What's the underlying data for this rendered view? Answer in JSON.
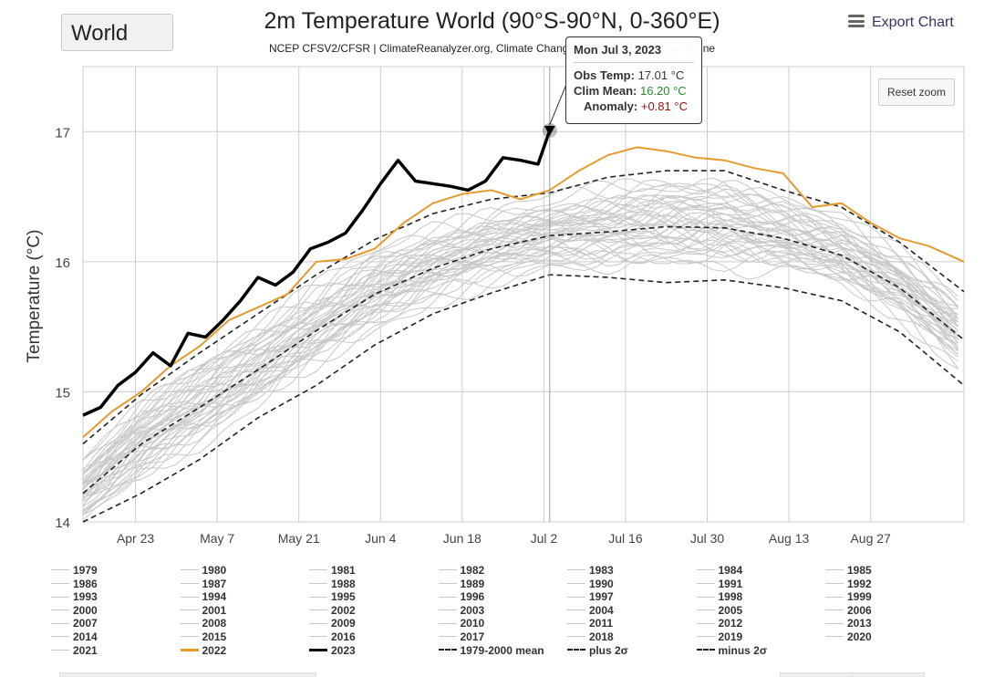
{
  "region_select": {
    "value": "World"
  },
  "title": "2m Temperature World (90°S-90°N, 0-360°E)",
  "subtitle": "NCEP CFSV2/CFSR | ClimateReanalyzer.org, Climate Change Institute, University of Maine",
  "export_label": "Export Chart",
  "reset_zoom_label": "Reset zoom",
  "tooltip": {
    "date": "Mon Jul 3, 2023",
    "rows": [
      {
        "label": "Obs Temp:",
        "value": "17.01 °C",
        "color": "#333333"
      },
      {
        "label": "Clim Mean:",
        "value": "16.20 °C",
        "color": "#2a8a2a"
      },
      {
        "label": "Anomaly:",
        "value": "+0.81 °C",
        "color": "#a01010"
      }
    ]
  },
  "colors": {
    "year_2022": "#e69a2e",
    "year_2023": "#000000",
    "other_years": "#c8c8c8",
    "grid": "#cccccc"
  },
  "chart_data": {
    "type": "line",
    "title": "2m Temperature World (90°S-90°N, 0-360°E)",
    "ylabel": "Temperature (°C)",
    "ylim": [
      14,
      17.5
    ],
    "yticks": [
      14,
      15,
      16,
      17
    ],
    "xlim": [
      "Apr 14",
      "Sep 12"
    ],
    "xticks": [
      "Apr 23",
      "May 7",
      "May 21",
      "Jun 4",
      "Jun 18",
      "Jul 2",
      "Jul 16",
      "Jul 30",
      "Aug 13",
      "Aug 27"
    ],
    "highlight_date": "Jul 3",
    "series": [
      {
        "name": "1979-2000 mean",
        "style": "dash",
        "x": [
          "Apr 14",
          "Apr 24",
          "May 4",
          "May 14",
          "May 24",
          "Jun 3",
          "Jun 13",
          "Jun 23",
          "Jul 3",
          "Jul 13",
          "Jul 23",
          "Aug 2",
          "Aug 12",
          "Aug 22",
          "Sep 1",
          "Sep 12"
        ],
        "y": [
          14.22,
          14.6,
          14.88,
          15.17,
          15.47,
          15.75,
          15.95,
          16.1,
          16.2,
          16.23,
          16.27,
          16.26,
          16.18,
          16.05,
          15.8,
          15.4
        ]
      },
      {
        "name": "plus 2σ",
        "style": "dash",
        "x": [
          "Apr 14",
          "Apr 24",
          "May 4",
          "May 14",
          "May 24",
          "Jun 3",
          "Jun 13",
          "Jun 23",
          "Jul 3",
          "Jul 13",
          "Jul 23",
          "Aug 2",
          "Aug 12",
          "Aug 22",
          "Sep 1",
          "Sep 12"
        ],
        "y": [
          14.6,
          14.98,
          15.3,
          15.6,
          15.9,
          16.17,
          16.37,
          16.48,
          16.53,
          16.65,
          16.7,
          16.7,
          16.55,
          16.42,
          16.15,
          15.77
        ]
      },
      {
        "name": "minus 2σ",
        "style": "dash",
        "x": [
          "Apr 14",
          "Apr 24",
          "May 4",
          "May 14",
          "May 24",
          "Jun 3",
          "Jun 13",
          "Jun 23",
          "Jul 3",
          "Jul 13",
          "Jul 23",
          "Aug 2",
          "Aug 12",
          "Aug 22",
          "Sep 1",
          "Sep 12"
        ],
        "y": [
          14.0,
          14.22,
          14.48,
          14.8,
          15.05,
          15.36,
          15.6,
          15.76,
          15.9,
          15.88,
          15.84,
          15.86,
          15.8,
          15.7,
          15.46,
          15.05
        ]
      },
      {
        "name": "2022",
        "style": "solid",
        "x": [
          "Apr 14",
          "Apr 19",
          "Apr 24",
          "Apr 29",
          "May 4",
          "May 9",
          "May 14",
          "May 19",
          "May 24",
          "May 29",
          "Jun 3",
          "Jun 8",
          "Jun 13",
          "Jun 18",
          "Jun 23",
          "Jun 28",
          "Jul 3",
          "Jul 8",
          "Jul 13",
          "Jul 18",
          "Jul 23",
          "Jul 28",
          "Aug 2",
          "Aug 7",
          "Aug 12",
          "Aug 17",
          "Aug 22",
          "Aug 27",
          "Sep 1",
          "Sep 6",
          "Sep 12"
        ],
        "y": [
          14.65,
          14.85,
          15.0,
          15.2,
          15.35,
          15.55,
          15.65,
          15.75,
          16.0,
          16.02,
          16.1,
          16.3,
          16.45,
          16.52,
          16.55,
          16.48,
          16.55,
          16.7,
          16.82,
          16.88,
          16.85,
          16.8,
          16.78,
          16.72,
          16.68,
          16.42,
          16.45,
          16.3,
          16.18,
          16.12,
          16.0
        ]
      },
      {
        "name": "2023",
        "style": "bold",
        "x": [
          "Apr 14",
          "Apr 17",
          "Apr 20",
          "Apr 23",
          "Apr 26",
          "Apr 29",
          "May 2",
          "May 5",
          "May 8",
          "May 11",
          "May 14",
          "May 17",
          "May 20",
          "May 23",
          "May 26",
          "May 29",
          "Jun 1",
          "Jun 4",
          "Jun 7",
          "Jun 10",
          "Jun 13",
          "Jun 16",
          "Jun 19",
          "Jun 22",
          "Jun 25",
          "Jun 28",
          "Jul 1",
          "Jul 3"
        ],
        "y": [
          14.82,
          14.88,
          15.05,
          15.15,
          15.3,
          15.2,
          15.45,
          15.42,
          15.55,
          15.7,
          15.88,
          15.82,
          15.92,
          16.1,
          16.15,
          16.22,
          16.4,
          16.6,
          16.78,
          16.62,
          16.6,
          16.58,
          16.55,
          16.62,
          16.8,
          16.78,
          16.75,
          17.01
        ]
      },
      {
        "name": "1979"
      },
      {
        "name": "1980"
      },
      {
        "name": "1981"
      },
      {
        "name": "1982"
      },
      {
        "name": "1983"
      },
      {
        "name": "1984"
      },
      {
        "name": "1985"
      },
      {
        "name": "1986"
      },
      {
        "name": "1987"
      },
      {
        "name": "1988"
      },
      {
        "name": "1989"
      },
      {
        "name": "1990"
      },
      {
        "name": "1991"
      },
      {
        "name": "1992"
      },
      {
        "name": "1993"
      },
      {
        "name": "1994"
      },
      {
        "name": "1995"
      },
      {
        "name": "1996"
      },
      {
        "name": "1997"
      },
      {
        "name": "1998"
      },
      {
        "name": "1999"
      },
      {
        "name": "2000"
      },
      {
        "name": "2001"
      },
      {
        "name": "2002"
      },
      {
        "name": "2003"
      },
      {
        "name": "2004"
      },
      {
        "name": "2005"
      },
      {
        "name": "2006"
      },
      {
        "name": "2007"
      },
      {
        "name": "2008"
      },
      {
        "name": "2009"
      },
      {
        "name": "2010"
      },
      {
        "name": "2011"
      },
      {
        "name": "2012"
      },
      {
        "name": "2013"
      },
      {
        "name": "2014"
      },
      {
        "name": "2015"
      },
      {
        "name": "2016"
      },
      {
        "name": "2017"
      },
      {
        "name": "2018"
      },
      {
        "name": "2019"
      },
      {
        "name": "2020"
      },
      {
        "name": "2021"
      }
    ],
    "legend_placement": "bottom",
    "legend": [
      "1979",
      "1980",
      "1981",
      "1982",
      "1983",
      "1984",
      "1985",
      "1986",
      "1987",
      "1988",
      "1989",
      "1990",
      "1991",
      "1992",
      "1993",
      "1994",
      "1995",
      "1996",
      "1997",
      "1998",
      "1999",
      "2000",
      "2001",
      "2002",
      "2003",
      "2004",
      "2005",
      "2006",
      "2007",
      "2008",
      "2009",
      "2010",
      "2011",
      "2012",
      "2013",
      "2014",
      "2015",
      "2016",
      "2017",
      "2018",
      "2019",
      "2020",
      "2021",
      "2022",
      "2023",
      "1979-2000 mean",
      "plus 2σ",
      "minus 2σ"
    ],
    "grid": true
  }
}
